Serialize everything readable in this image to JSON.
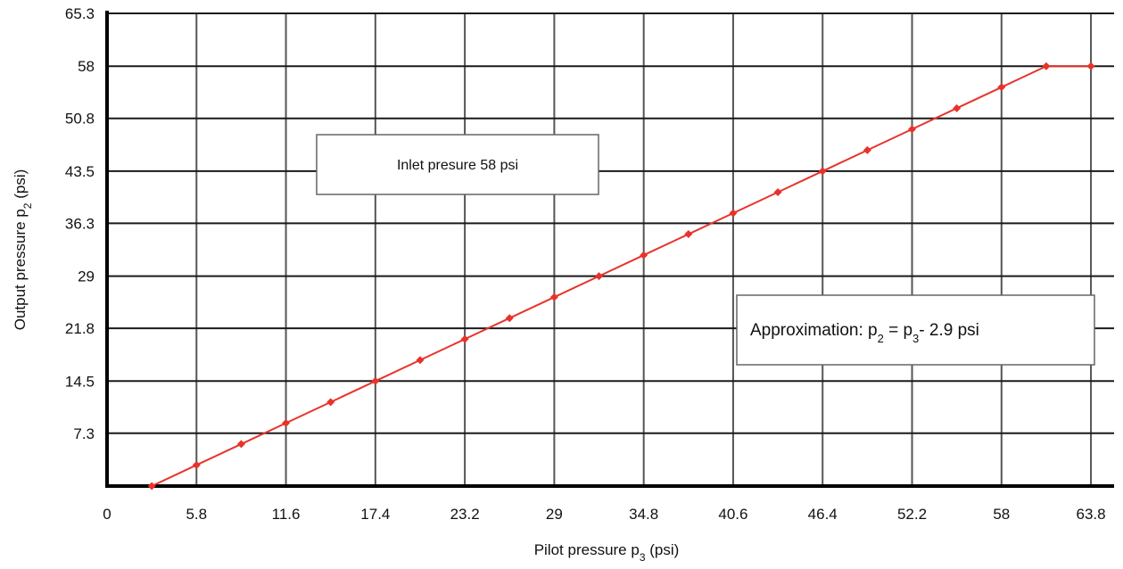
{
  "chart_data": {
    "type": "line",
    "xlabel": "Pilot pressure p3 (psi)",
    "ylabel": "Output pressure p2 (psi)",
    "xlabel_parts": {
      "main": "Pilot pressure p",
      "sub": "3",
      "tail": " (psi)"
    },
    "ylabel_parts": {
      "main": "Output pressure p",
      "sub": "2",
      "tail": " (psi)"
    },
    "xlim": [
      0,
      65.3
    ],
    "ylim": [
      0,
      65.3
    ],
    "x_ticks": [
      {
        "value": 0,
        "label": "0"
      },
      {
        "value": 5.8,
        "label": "5.8"
      },
      {
        "value": 11.6,
        "label": "11.6"
      },
      {
        "value": 17.4,
        "label": "17.4"
      },
      {
        "value": 23.2,
        "label": "23.2"
      },
      {
        "value": 29,
        "label": "29"
      },
      {
        "value": 34.8,
        "label": "34.8"
      },
      {
        "value": 40.6,
        "label": "40.6"
      },
      {
        "value": 46.4,
        "label": "46.4"
      },
      {
        "value": 52.2,
        "label": "52.2"
      },
      {
        "value": 58,
        "label": "58"
      },
      {
        "value": 63.8,
        "label": "63.8"
      }
    ],
    "y_ticks": [
      {
        "value": 7.3,
        "label": "7.3"
      },
      {
        "value": 14.5,
        "label": "14.5"
      },
      {
        "value": 21.8,
        "label": "21.8"
      },
      {
        "value": 29,
        "label": "29"
      },
      {
        "value": 36.3,
        "label": "36.3"
      },
      {
        "value": 43.5,
        "label": "43.5"
      },
      {
        "value": 50.8,
        "label": "50.8"
      },
      {
        "value": 58,
        "label": "58"
      },
      {
        "value": 65.3,
        "label": "65.3"
      }
    ],
    "grid": true,
    "series": [
      {
        "color": "#e8332a",
        "marker": "diamond",
        "points": [
          {
            "x": 2.9,
            "y": 0
          },
          {
            "x": 5.8,
            "y": 2.9
          },
          {
            "x": 8.7,
            "y": 5.8
          },
          {
            "x": 11.6,
            "y": 8.7
          },
          {
            "x": 14.5,
            "y": 11.6
          },
          {
            "x": 17.4,
            "y": 14.5
          },
          {
            "x": 20.3,
            "y": 17.4
          },
          {
            "x": 23.2,
            "y": 20.3
          },
          {
            "x": 26.1,
            "y": 23.2
          },
          {
            "x": 29,
            "y": 26.1
          },
          {
            "x": 31.9,
            "y": 29
          },
          {
            "x": 34.8,
            "y": 31.9
          },
          {
            "x": 37.7,
            "y": 34.8
          },
          {
            "x": 40.6,
            "y": 37.7
          },
          {
            "x": 43.5,
            "y": 40.6
          },
          {
            "x": 46.4,
            "y": 43.5
          },
          {
            "x": 49.3,
            "y": 46.4
          },
          {
            "x": 52.2,
            "y": 49.3
          },
          {
            "x": 55.1,
            "y": 52.2
          },
          {
            "x": 58,
            "y": 55.1
          },
          {
            "x": 60.9,
            "y": 58
          },
          {
            "x": 63.8,
            "y": 58
          }
        ]
      }
    ],
    "annotations": [
      {
        "id": "inlet",
        "text": "Inlet presure 58 psi"
      },
      {
        "id": "approx",
        "text": "Approximation: p2 = p3- 2.9 psi",
        "parts": {
          "a": "Approximation: p",
          "sub1": "2",
          "b": " = p",
          "sub2": "3",
          "c": "- 2.9 psi"
        }
      }
    ]
  }
}
